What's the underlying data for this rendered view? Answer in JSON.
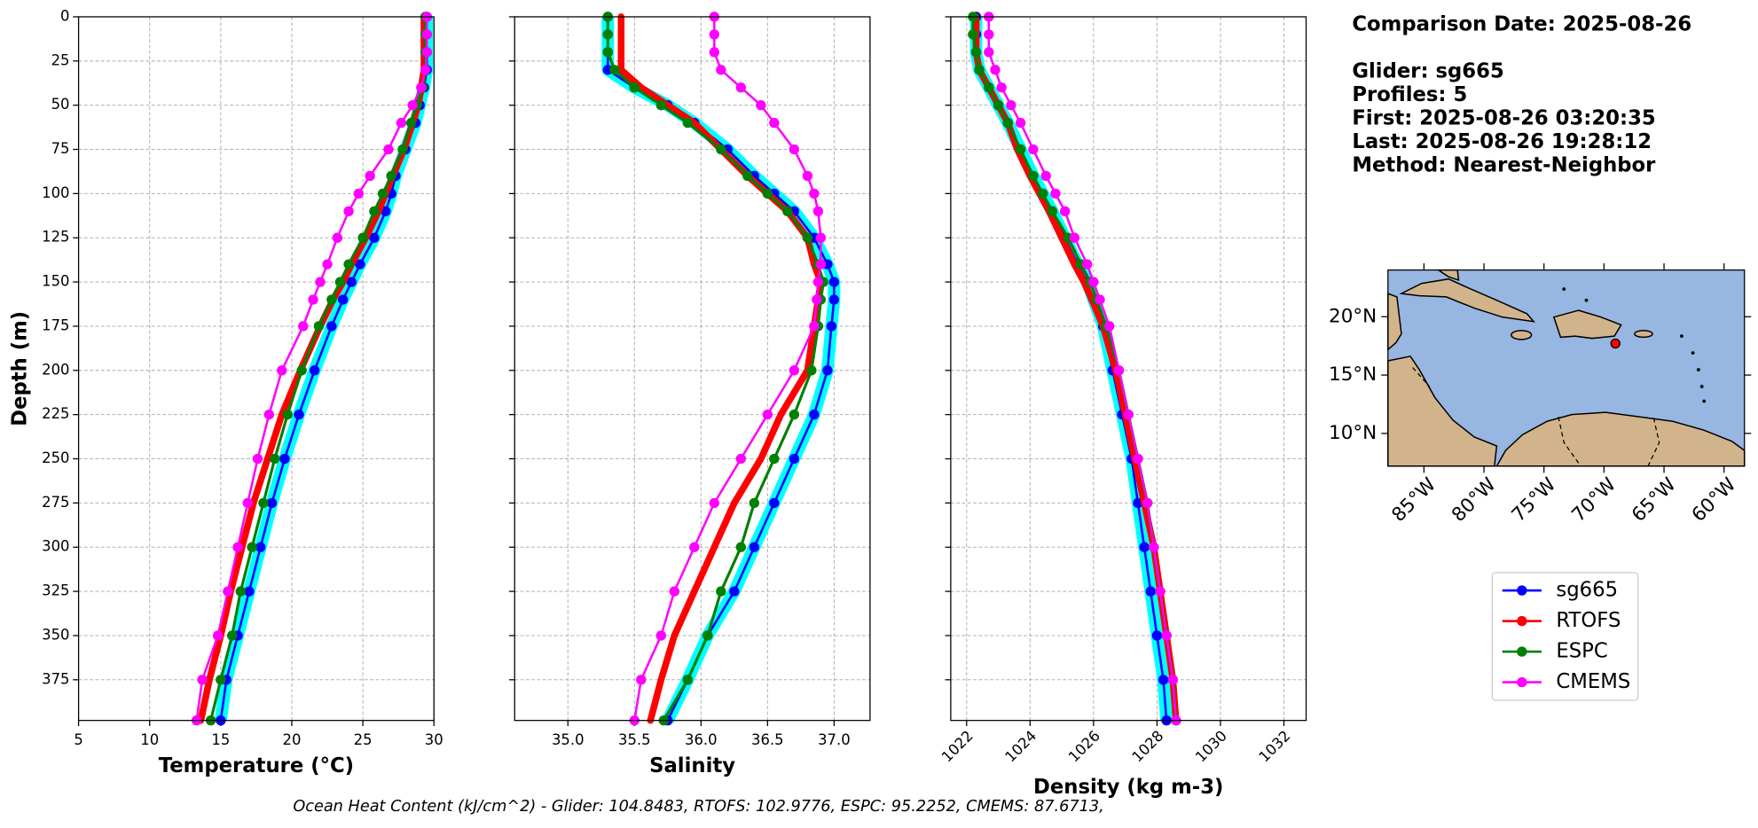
{
  "chart_data": [
    {
      "type": "line",
      "xlabel": "Temperature (°C)",
      "ylabel": "Depth (m)",
      "xlim": [
        5,
        30
      ],
      "xticks": [
        5,
        10,
        15,
        20,
        25,
        30
      ],
      "ylim": [
        0,
        398
      ],
      "y_inverted": true,
      "yticks": [
        0,
        25,
        50,
        75,
        100,
        125,
        150,
        175,
        200,
        225,
        250,
        275,
        300,
        325,
        350,
        375
      ],
      "grid": true,
      "y": [
        0,
        10,
        20,
        30,
        40,
        50,
        60,
        75,
        90,
        100,
        110,
        125,
        140,
        150,
        160,
        175,
        200,
        225,
        250,
        275,
        300,
        325,
        350,
        375,
        398
      ],
      "series": [
        {
          "name": "sg665",
          "color": "#0000ff",
          "values": [
            29.5,
            29.5,
            29.5,
            29.5,
            29.3,
            29,
            28.7,
            28,
            27.3,
            27,
            26.6,
            25.8,
            24.8,
            24.2,
            23.6,
            22.8,
            21.6,
            20.5,
            19.5,
            18.6,
            17.8,
            17,
            16.2,
            15.4,
            15
          ]
        },
        {
          "name": "RTOFS",
          "color": "#ff0000",
          "values": [
            29.3,
            29.3,
            29.3,
            29.3,
            29.1,
            28.9,
            28.5,
            27.9,
            27.1,
            26.6,
            26.1,
            25.2,
            24.2,
            23.6,
            22.9,
            22,
            20.6,
            19.3,
            18.3,
            17.3,
            16.5,
            15.7,
            15,
            14.2,
            13.6
          ]
        },
        {
          "name": "ESPC",
          "color": "#008000",
          "values": [
            29.4,
            29.4,
            29.4,
            29.4,
            29.2,
            28.8,
            28.4,
            27.8,
            27,
            26.4,
            25.8,
            25,
            24,
            23.4,
            22.8,
            21.9,
            20.7,
            19.7,
            18.8,
            18,
            17.2,
            16.4,
            15.8,
            15,
            14.3
          ]
        },
        {
          "name": "CMEMS",
          "color": "#ff00ff",
          "values": [
            29.5,
            29.5,
            29.5,
            29.4,
            29.1,
            28.5,
            27.7,
            26.8,
            25.5,
            24.7,
            24,
            23.2,
            22.5,
            22,
            21.5,
            20.8,
            19.3,
            18.4,
            17.6,
            16.9,
            16.2,
            15.5,
            14.8,
            13.7,
            13.3
          ]
        }
      ]
    },
    {
      "type": "line",
      "xlabel": "Salinity",
      "sharey": true,
      "xlim": [
        34.6,
        37.27
      ],
      "xticks": [
        {
          "value": 35,
          "label": "35.0"
        },
        35.5,
        {
          "value": 36,
          "label": "36.0"
        },
        36.5,
        {
          "value": 37,
          "label": "37.0"
        }
      ],
      "ylim": [
        0,
        398
      ],
      "y_inverted": true,
      "grid": true,
      "y": [
        0,
        10,
        20,
        30,
        40,
        50,
        60,
        75,
        90,
        100,
        110,
        125,
        140,
        150,
        160,
        175,
        200,
        225,
        250,
        275,
        300,
        325,
        350,
        375,
        398
      ],
      "series": [
        {
          "name": "sg665",
          "color": "#0000ff",
          "values": [
            35.3,
            35.3,
            35.3,
            35.3,
            35.5,
            35.75,
            35.95,
            36.2,
            36.4,
            36.55,
            36.7,
            36.85,
            36.95,
            37,
            37,
            36.98,
            36.95,
            36.85,
            36.7,
            36.55,
            36.4,
            36.25,
            36.05,
            35.9,
            35.75
          ]
        },
        {
          "name": "RTOFS",
          "color": "#ff0000",
          "values": [
            35.4,
            35.4,
            35.4,
            35.4,
            35.55,
            35.75,
            35.95,
            36.15,
            36.35,
            36.5,
            36.65,
            36.8,
            36.85,
            36.9,
            36.88,
            36.85,
            36.8,
            36.6,
            36.45,
            36.25,
            36.1,
            35.95,
            35.8,
            35.7,
            35.62
          ]
        },
        {
          "name": "ESPC",
          "color": "#008000",
          "values": [
            35.3,
            35.3,
            35.3,
            35.35,
            35.5,
            35.7,
            35.9,
            36.15,
            36.35,
            36.5,
            36.65,
            36.8,
            36.88,
            36.92,
            36.9,
            36.88,
            36.83,
            36.7,
            36.55,
            36.4,
            36.3,
            36.15,
            36.05,
            35.9,
            35.72
          ]
        },
        {
          "name": "CMEMS",
          "color": "#ff00ff",
          "values": [
            36.1,
            36.1,
            36.1,
            36.15,
            36.3,
            36.45,
            36.55,
            36.7,
            36.8,
            36.85,
            36.88,
            36.9,
            36.9,
            36.88,
            36.87,
            36.85,
            36.7,
            36.5,
            36.3,
            36.1,
            35.95,
            35.8,
            35.7,
            35.55,
            35.5
          ]
        }
      ]
    },
    {
      "type": "line",
      "xlabel": "Density (kg m-3)",
      "sharey": true,
      "xtick_rotation": 45,
      "xlim": [
        1021.5,
        1032.7
      ],
      "xticks": [
        1022,
        1024,
        1026,
        1028,
        1030,
        1032
      ],
      "ylim": [
        0,
        398
      ],
      "y_inverted": true,
      "grid": true,
      "y": [
        0,
        10,
        20,
        30,
        40,
        50,
        60,
        75,
        90,
        100,
        110,
        125,
        140,
        150,
        160,
        175,
        200,
        225,
        250,
        275,
        300,
        325,
        350,
        375,
        398
      ],
      "series": [
        {
          "name": "sg665",
          "color": "#0000ff",
          "values": [
            1022.3,
            1022.3,
            1022.3,
            1022.4,
            1022.7,
            1023,
            1023.3,
            1023.7,
            1024.1,
            1024.4,
            1024.7,
            1025.1,
            1025.5,
            1025.8,
            1026,
            1026.3,
            1026.6,
            1026.9,
            1027.2,
            1027.4,
            1027.6,
            1027.8,
            1028,
            1028.2,
            1028.3
          ]
        },
        {
          "name": "RTOFS",
          "color": "#ff0000",
          "values": [
            1022.3,
            1022.3,
            1022.3,
            1022.4,
            1022.7,
            1023,
            1023.3,
            1023.6,
            1024,
            1024.3,
            1024.6,
            1025,
            1025.4,
            1025.7,
            1025.95,
            1026.3,
            1026.7,
            1027,
            1027.3,
            1027.6,
            1027.9,
            1028.1,
            1028.3,
            1028.5,
            1028.6
          ]
        },
        {
          "name": "ESPC",
          "color": "#008000",
          "values": [
            1022.2,
            1022.2,
            1022.3,
            1022.4,
            1022.7,
            1023,
            1023.3,
            1023.7,
            1024.1,
            1024.4,
            1024.7,
            1025.2,
            1025.6,
            1025.9,
            1026.1,
            1026.4,
            1026.8,
            1027.1,
            1027.4,
            1027.7,
            1027.9,
            1028.1,
            1028.3,
            1028.5,
            1028.6
          ]
        },
        {
          "name": "CMEMS",
          "color": "#ff00ff",
          "values": [
            1022.7,
            1022.7,
            1022.7,
            1022.9,
            1023.1,
            1023.4,
            1023.7,
            1024.1,
            1024.5,
            1024.8,
            1025.1,
            1025.4,
            1025.8,
            1026,
            1026.2,
            1026.5,
            1026.8,
            1027.1,
            1027.4,
            1027.7,
            1027.9,
            1028.1,
            1028.3,
            1028.5,
            1028.6
          ]
        }
      ]
    }
  ],
  "info": [
    "Comparison Date: 2025-08-26",
    "Glider: sg665",
    "Profiles: 5",
    "First: 2025-08-26 03:20:35",
    "Last: 2025-08-26 19:28:12",
    "Method: Nearest-Neighbor"
  ],
  "map": {
    "xlim": [
      -88,
      -58.3
    ],
    "ylim": [
      7.2,
      24
    ],
    "xticks": [
      {
        "value": -85,
        "label": "85°W"
      },
      {
        "value": -80,
        "label": "80°W"
      },
      {
        "value": -75,
        "label": "75°W"
      },
      {
        "value": -70,
        "label": "70°W"
      },
      {
        "value": -65,
        "label": "65°W"
      },
      {
        "value": -60,
        "label": "60°W"
      }
    ],
    "yticks": [
      {
        "value": 20,
        "label": "20°N"
      },
      {
        "value": 15,
        "label": "15°N"
      },
      {
        "value": 10,
        "label": "10°N"
      }
    ],
    "glider_position": [
      -69.05,
      17.7
    ]
  },
  "footer": "Ocean Heat Content (kJ/cm^2) - Glider: 104.8483,  RTOFS: 102.9776,  ESPC: 95.2252,  CMEMS: 87.6713,"
}
